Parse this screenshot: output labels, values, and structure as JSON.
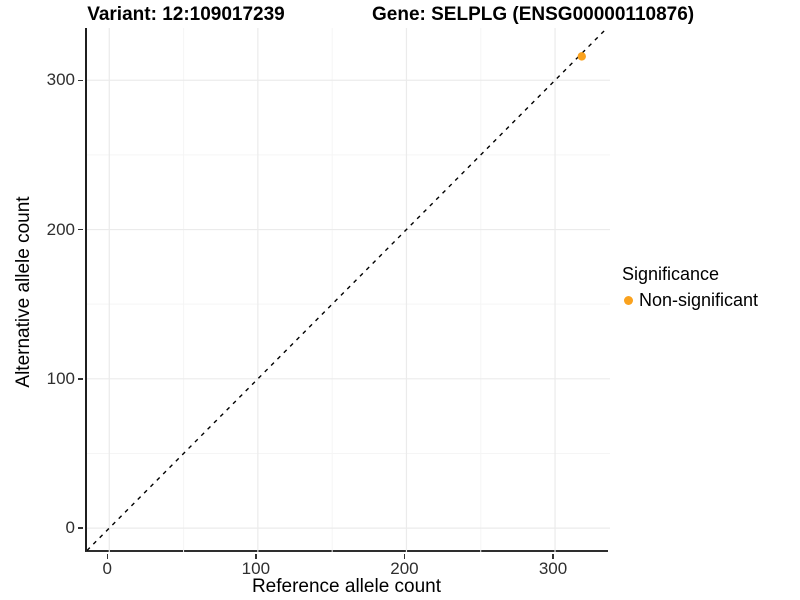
{
  "header": {
    "title_left": "Variant: 12:109017239",
    "title_right": "Gene: SELPLG (ENSG00000110876)"
  },
  "axes": {
    "x_title": "Reference allele count",
    "y_title": "Alternative allele count"
  },
  "legend": {
    "title": "Significance",
    "items": [
      {
        "label": "Non-significant",
        "marker": "filled-circle",
        "color": "#FAA21E"
      }
    ]
  },
  "colors": {
    "background": "#ffffff",
    "point_orange": "#FAA21E",
    "axis_line": "#1f1f1f",
    "tick_label": "#2f2f2f",
    "grid_major": "#ebebeb",
    "grid_minor": "#f5f5f5",
    "identity_line": "#000000"
  },
  "chart_data": {
    "type": "scatter",
    "title_left": "Variant: 12:109017239",
    "title_right": "Gene: SELPLG (ENSG00000110876)",
    "xlabel": "Reference allele count",
    "ylabel": "Alternative allele count",
    "xlim": [
      -15,
      337
    ],
    "ylim": [
      -16,
      335
    ],
    "x_ticks": [
      0,
      100,
      200,
      300
    ],
    "y_ticks": [
      0,
      100,
      200,
      300
    ],
    "x_minor_ticks": [
      50,
      150,
      250
    ],
    "y_minor_ticks": [
      50,
      150,
      250
    ],
    "grid": "major-and-minor",
    "legend_position": "right",
    "reference_line": {
      "kind": "identity y=x",
      "style": "dashed",
      "color": "#000000"
    },
    "series": [
      {
        "name": "Non-significant",
        "color": "#FAA21E",
        "points": [
          {
            "x": 318,
            "y": 316
          }
        ]
      }
    ]
  }
}
